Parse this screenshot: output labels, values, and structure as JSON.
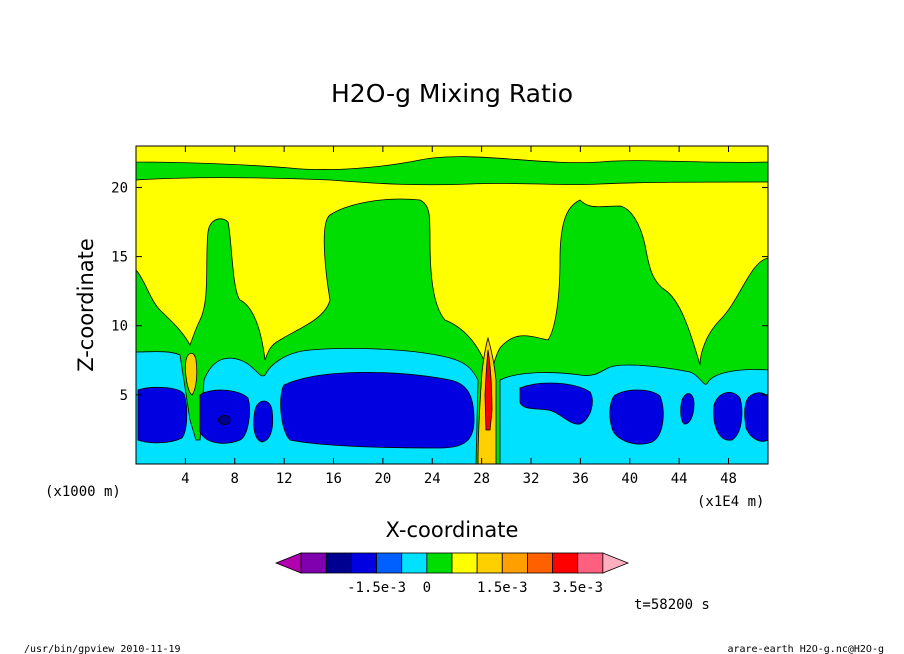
{
  "chart_data": {
    "type": "heatmap",
    "title": "H2O-g Mixing Ratio",
    "xlabel": "X-coordinate",
    "ylabel": "Z-coordinate",
    "x_unit_left": "(x1000 m)",
    "x_unit_right": "(x1E4 m)",
    "x_ticks": [
      "4",
      "8",
      "12",
      "16",
      "20",
      "24",
      "28",
      "32",
      "36",
      "40",
      "44",
      "48"
    ],
    "y_ticks": [
      "5",
      "10",
      "15",
      "20"
    ],
    "x_range": [
      0,
      51.2
    ],
    "y_range": [
      0,
      23
    ],
    "grid": false,
    "colorbar": {
      "labels": [
        "-1.5e-3",
        "0",
        "1.5e-3",
        "3.5e-3"
      ],
      "colors": [
        "#b000b0",
        "#8000b0",
        "#000090",
        "#0000e0",
        "#0060ff",
        "#00e0ff",
        "#00dd00",
        "#ffff00",
        "#ffd000",
        "#ffa000",
        "#ff6000",
        "#ff0000",
        "#ff6080",
        "#ffb0c0"
      ]
    },
    "time_label": "t=58200 s",
    "footer_left": "/usr/bin/gpview  2010-11-19",
    "footer_right": "arare-earth_H2O-g.nc@H2O-g"
  }
}
